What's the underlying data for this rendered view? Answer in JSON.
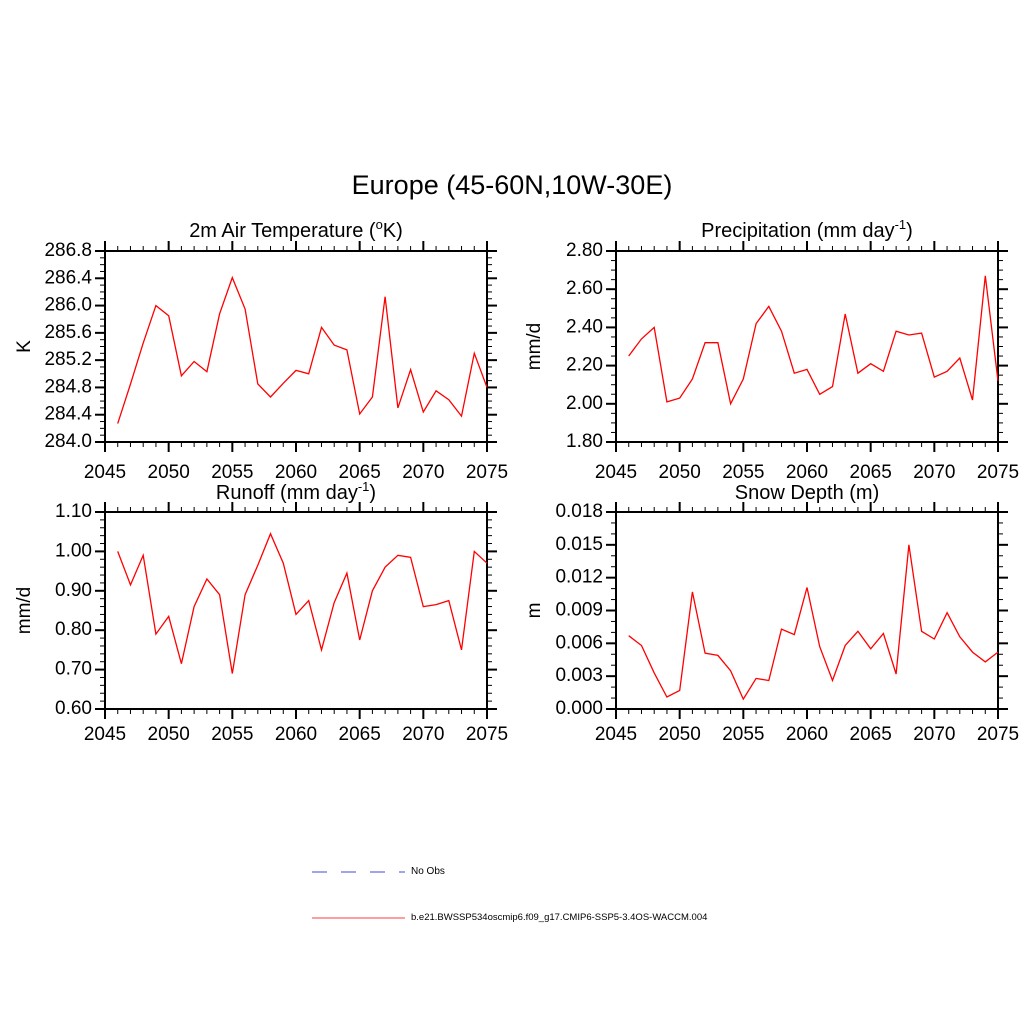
{
  "main_title": "Europe (45-60N,10W-30E)",
  "colors": {
    "series_line": "#ff0000",
    "axis": "#000000",
    "legend_noobs": "#a3a3ea",
    "legend_model": "#ff9e9e"
  },
  "legend": {
    "noobs_label": "No Obs",
    "model_label": "b.e21.BWSSP534oscmip6.f09_g17.CMIP6-SSP5-3.4OS-WACCM.004"
  },
  "chart_data": {
    "type": "line",
    "x_axis": {
      "xlim": [
        2045,
        2075
      ],
      "xtick_labels": [
        "2045",
        "2050",
        "2055",
        "2060",
        "2065",
        "2070",
        "2075"
      ],
      "xtick_step": 5,
      "xminor_step": 1
    },
    "years": [
      2046,
      2047,
      2048,
      2049,
      2050,
      2051,
      2052,
      2053,
      2054,
      2055,
      2056,
      2057,
      2058,
      2059,
      2060,
      2061,
      2062,
      2063,
      2064,
      2065,
      2066,
      2067,
      2068,
      2069,
      2070,
      2071,
      2072,
      2073,
      2074,
      2075
    ],
    "panels": [
      {
        "key": "temperature",
        "title_pre": "2m Air Temperature (",
        "title_sup": "o",
        "title_post": "K)",
        "ylabel": "K",
        "ymin": 284.0,
        "ymax": 286.8,
        "ystep": 0.4,
        "yminors": 3,
        "ydecimals": 1,
        "ytick_labels": [
          "284.0",
          "284.4",
          "284.8",
          "285.2",
          "285.6",
          "286.0",
          "286.4",
          "286.8"
        ],
        "values": [
          284.27,
          284.85,
          285.45,
          286.0,
          285.85,
          284.97,
          285.18,
          285.03,
          285.88,
          286.41,
          285.95,
          284.85,
          284.66,
          284.86,
          285.05,
          285.0,
          285.68,
          285.42,
          285.35,
          284.41,
          284.66,
          286.13,
          284.5,
          285.06,
          284.44,
          284.75,
          284.62,
          284.38,
          285.3,
          284.8
        ]
      },
      {
        "key": "precipitation",
        "title_pre": "Precipitation (mm day",
        "title_sup": "-1",
        "title_post": ")",
        "ylabel": "mm/d",
        "ymin": 1.8,
        "ymax": 2.8,
        "ystep": 0.2,
        "yminors": 3,
        "ydecimals": 2,
        "ytick_labels": [
          "1.80",
          "2.00",
          "2.20",
          "2.40",
          "2.60",
          "2.80"
        ],
        "values": [
          2.25,
          2.34,
          2.4,
          2.01,
          2.03,
          2.13,
          2.32,
          2.32,
          2.0,
          2.13,
          2.42,
          2.51,
          2.38,
          2.16,
          2.18,
          2.05,
          2.09,
          2.47,
          2.16,
          2.21,
          2.17,
          2.38,
          2.36,
          2.37,
          2.14,
          2.17,
          2.24,
          2.02,
          2.67,
          2.12
        ]
      },
      {
        "key": "runoff",
        "title_pre": "Runoff (mm day",
        "title_sup": "-1",
        "title_post": ")",
        "ylabel": "mm/d",
        "ymin": 0.6,
        "ymax": 1.1,
        "ystep": 0.1,
        "yminors": 4,
        "ydecimals": 2,
        "ytick_labels": [
          "0.60",
          "0.70",
          "0.80",
          "0.90",
          "1.00",
          "1.10"
        ],
        "values": [
          1.0,
          0.915,
          0.99,
          0.79,
          0.835,
          0.715,
          0.86,
          0.93,
          0.89,
          0.69,
          0.89,
          0.965,
          1.045,
          0.97,
          0.84,
          0.875,
          0.75,
          0.87,
          0.945,
          0.775,
          0.9,
          0.96,
          0.99,
          0.985,
          0.86,
          0.865,
          0.875,
          0.75,
          1.0,
          0.97
        ]
      },
      {
        "key": "snow-depth",
        "title_pre": "Snow Depth (m)",
        "title_sup": "",
        "title_post": "",
        "ylabel": "m",
        "ymin": 0.0,
        "ymax": 0.018,
        "ystep": 0.003,
        "yminors": 2,
        "ydecimals": 3,
        "ytick_labels": [
          "0.000",
          "0.003",
          "0.006",
          "0.009",
          "0.012",
          "0.015",
          "0.018"
        ],
        "values": [
          0.0067,
          0.0058,
          0.0033,
          0.0011,
          0.0017,
          0.0107,
          0.0051,
          0.0049,
          0.0035,
          0.0009,
          0.0028,
          0.0026,
          0.0073,
          0.0068,
          0.0111,
          0.0057,
          0.0026,
          0.0058,
          0.0071,
          0.0055,
          0.0069,
          0.0032,
          0.015,
          0.0071,
          0.0064,
          0.0088,
          0.0066,
          0.0052,
          0.0043,
          0.0052
        ]
      }
    ]
  }
}
